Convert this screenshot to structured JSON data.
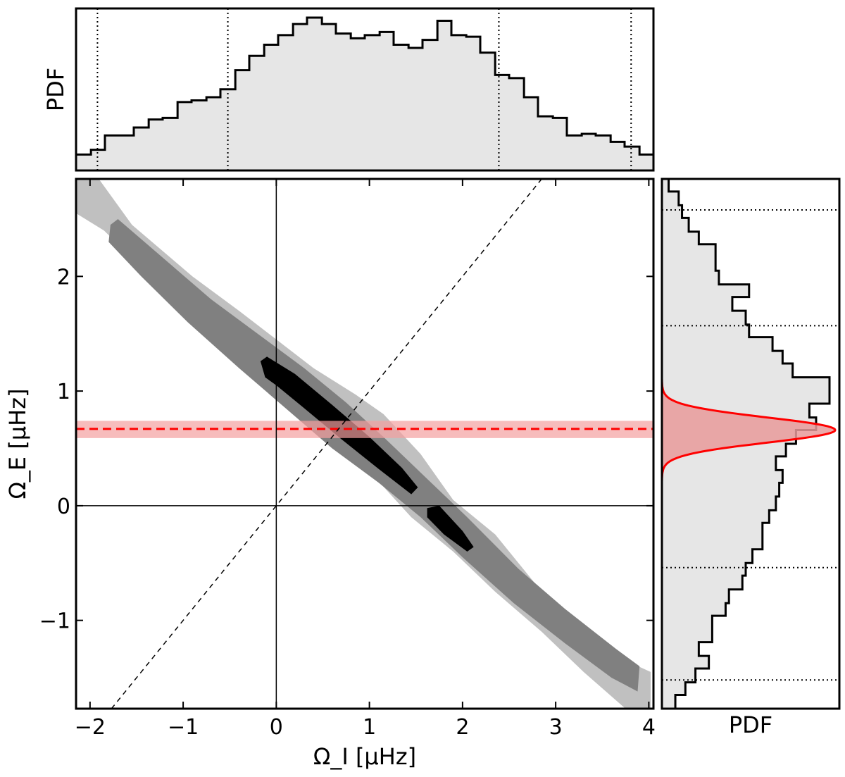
{
  "chart_data": [
    {
      "type": "area",
      "panel": "top-marginal-histogram",
      "ylabel": "PDF",
      "x_range": [
        -2.15,
        4.05
      ],
      "fill_color": "#e6e6e6",
      "line_color": "#000000",
      "bin_edges": [
        -2.15,
        -1.99,
        -1.84,
        -1.68,
        -1.53,
        -1.37,
        -1.22,
        -1.06,
        -0.91,
        -0.75,
        -0.6,
        -0.44,
        -0.29,
        -0.13,
        0.02,
        0.18,
        0.33,
        0.49,
        0.64,
        0.8,
        0.95,
        1.11,
        1.26,
        1.42,
        1.57,
        1.73,
        1.88,
        2.04,
        2.19,
        2.35,
        2.5,
        2.66,
        2.81,
        2.97,
        3.12,
        3.28,
        3.43,
        3.59,
        3.74,
        3.9,
        4.05
      ],
      "values": [
        0.1,
        0.13,
        0.22,
        0.22,
        0.27,
        0.32,
        0.33,
        0.43,
        0.44,
        0.46,
        0.51,
        0.63,
        0.72,
        0.79,
        0.85,
        0.92,
        0.96,
        0.92,
        0.86,
        0.83,
        0.85,
        0.87,
        0.79,
        0.77,
        0.82,
        0.94,
        0.85,
        0.84,
        0.74,
        0.6,
        0.58,
        0.46,
        0.34,
        0.33,
        0.22,
        0.23,
        0.22,
        0.18,
        0.15,
        0.1
      ],
      "percentile_lines_x": [
        -1.92,
        -0.52,
        2.39,
        3.81
      ],
      "percentile_line_style": "dotted"
    },
    {
      "type": "heatmap",
      "panel": "joint-posterior-contours",
      "xlabel": "Ω_I [μHz]",
      "ylabel": "Ω_E [μHz]",
      "xlim": [
        -2.15,
        4.05
      ],
      "ylim": [
        -1.77,
        2.85
      ],
      "xticks": [
        "−2",
        "−1",
        "0",
        "1",
        "2",
        "3",
        "4"
      ],
      "xtick_values": [
        -2,
        -1,
        0,
        1,
        2,
        3,
        4
      ],
      "yticks": [
        "−1",
        "0",
        "1",
        "2"
      ],
      "ytick_values": [
        -1,
        0,
        1,
        2
      ],
      "contour_levels": [
        {
          "level": "outer",
          "color": "#c0c0c0",
          "polygon": [
            [
              -2.15,
              2.85
            ],
            [
              -1.95,
              2.9
            ],
            [
              -1.55,
              2.45
            ],
            [
              -0.9,
              2.0
            ],
            [
              -0.4,
              1.7
            ],
            [
              0.0,
              1.45
            ],
            [
              0.4,
              1.2
            ],
            [
              0.85,
              0.97
            ],
            [
              1.15,
              0.8
            ],
            [
              1.55,
              0.45
            ],
            [
              1.9,
              0.05
            ],
            [
              2.35,
              -0.25
            ],
            [
              2.8,
              -0.7
            ],
            [
              3.3,
              -1.05
            ],
            [
              3.75,
              -1.35
            ],
            [
              4.02,
              -1.45
            ],
            [
              4.02,
              -1.77
            ],
            [
              3.75,
              -1.77
            ],
            [
              3.3,
              -1.45
            ],
            [
              2.85,
              -1.1
            ],
            [
              2.35,
              -0.75
            ],
            [
              1.9,
              -0.4
            ],
            [
              1.45,
              -0.1
            ],
            [
              1.0,
              0.3
            ],
            [
              0.55,
              0.6
            ],
            [
              0.1,
              0.9
            ],
            [
              -0.35,
              1.25
            ],
            [
              -0.85,
              1.6
            ],
            [
              -1.35,
              2.0
            ],
            [
              -1.85,
              2.4
            ],
            [
              -2.15,
              2.55
            ]
          ]
        },
        {
          "level": "middle",
          "color": "#808080",
          "polygon": [
            [
              -1.78,
              2.45
            ],
            [
              -1.7,
              2.5
            ],
            [
              -1.2,
              2.15
            ],
            [
              -0.7,
              1.8
            ],
            [
              -0.2,
              1.5
            ],
            [
              0.3,
              1.2
            ],
            [
              0.75,
              0.9
            ],
            [
              1.15,
              0.6
            ],
            [
              1.6,
              0.25
            ],
            [
              2.05,
              -0.1
            ],
            [
              2.6,
              -0.55
            ],
            [
              3.1,
              -0.9
            ],
            [
              3.65,
              -1.25
            ],
            [
              3.9,
              -1.4
            ],
            [
              3.88,
              -1.62
            ],
            [
              3.6,
              -1.5
            ],
            [
              3.1,
              -1.2
            ],
            [
              2.55,
              -0.85
            ],
            [
              2.0,
              -0.45
            ],
            [
              1.55,
              -0.1
            ],
            [
              1.1,
              0.2
            ],
            [
              0.6,
              0.5
            ],
            [
              0.1,
              0.85
            ],
            [
              -0.4,
              1.2
            ],
            [
              -0.95,
              1.6
            ],
            [
              -1.45,
              2.0
            ],
            [
              -1.8,
              2.3
            ]
          ]
        },
        {
          "level": "inner",
          "color": "#000000",
          "polygon": [
            [
              -0.17,
              1.26
            ],
            [
              -0.1,
              1.3
            ],
            [
              0.2,
              1.15
            ],
            [
              0.6,
              0.88
            ],
            [
              1.0,
              0.6
            ],
            [
              1.35,
              0.33
            ],
            [
              1.52,
              0.16
            ],
            [
              1.45,
              0.1
            ],
            [
              1.1,
              0.32
            ],
            [
              0.7,
              0.58
            ],
            [
              0.3,
              0.85
            ],
            [
              0.0,
              1.05
            ],
            [
              -0.12,
              1.12
            ]
          ]
        },
        {
          "level": "inner-tail",
          "color": "#000000",
          "polygon": [
            [
              1.62,
              -0.02
            ],
            [
              1.75,
              0.0
            ],
            [
              2.0,
              -0.22
            ],
            [
              2.12,
              -0.36
            ],
            [
              2.05,
              -0.4
            ],
            [
              1.8,
              -0.25
            ],
            [
              1.62,
              -0.1
            ]
          ]
        }
      ],
      "reference_lines": [
        {
          "kind": "vertical",
          "x": 0,
          "style": "solid",
          "color": "#000000"
        },
        {
          "kind": "horizontal",
          "y": 0,
          "style": "solid",
          "color": "#000000"
        },
        {
          "kind": "diagonal y=x",
          "style": "dashed",
          "color": "#000000"
        }
      ],
      "measurement_band": {
        "center": 0.67,
        "low": 0.59,
        "high": 0.74,
        "line_color": "#ff0000",
        "band_color": "#f4a0a0",
        "line_style": "dashed"
      }
    },
    {
      "type": "area",
      "panel": "right-marginal-histogram",
      "xlabel": "PDF",
      "y_range": [
        -1.77,
        2.85
      ],
      "fill_color": "#e6e6e6",
      "line_color": "#000000",
      "bin_edges": [
        -1.77,
        -1.65,
        -1.54,
        -1.42,
        -1.31,
        -1.19,
        -1.08,
        -0.96,
        -0.85,
        -0.73,
        -0.61,
        -0.5,
        -0.38,
        -0.27,
        -0.15,
        -0.04,
        0.08,
        0.2,
        0.31,
        0.43,
        0.54,
        0.66,
        0.77,
        0.89,
        1.0,
        1.12,
        1.24,
        1.35,
        1.47,
        1.58,
        1.7,
        1.82,
        1.93,
        2.05,
        2.16,
        2.28,
        2.39,
        2.51,
        2.62,
        2.74,
        2.85
      ],
      "values": [
        0.08,
        0.14,
        0.2,
        0.28,
        0.22,
        0.3,
        0.3,
        0.38,
        0.4,
        0.48,
        0.5,
        0.54,
        0.6,
        0.6,
        0.64,
        0.68,
        0.7,
        0.72,
        0.68,
        0.74,
        0.8,
        0.92,
        0.88,
        1.0,
        1.0,
        0.78,
        0.72,
        0.66,
        0.52,
        0.5,
        0.42,
        0.52,
        0.34,
        0.32,
        0.32,
        0.22,
        0.16,
        0.12,
        0.1,
        0.04
      ],
      "percentile_lines_y": [
        -1.52,
        -0.54,
        1.57,
        2.58
      ],
      "percentile_line_style": "dotted",
      "gaussian_overlay": {
        "mean": 0.66,
        "sigma": 0.11,
        "line_color": "#ff0000",
        "fill_color": "#e89a9a"
      }
    }
  ]
}
